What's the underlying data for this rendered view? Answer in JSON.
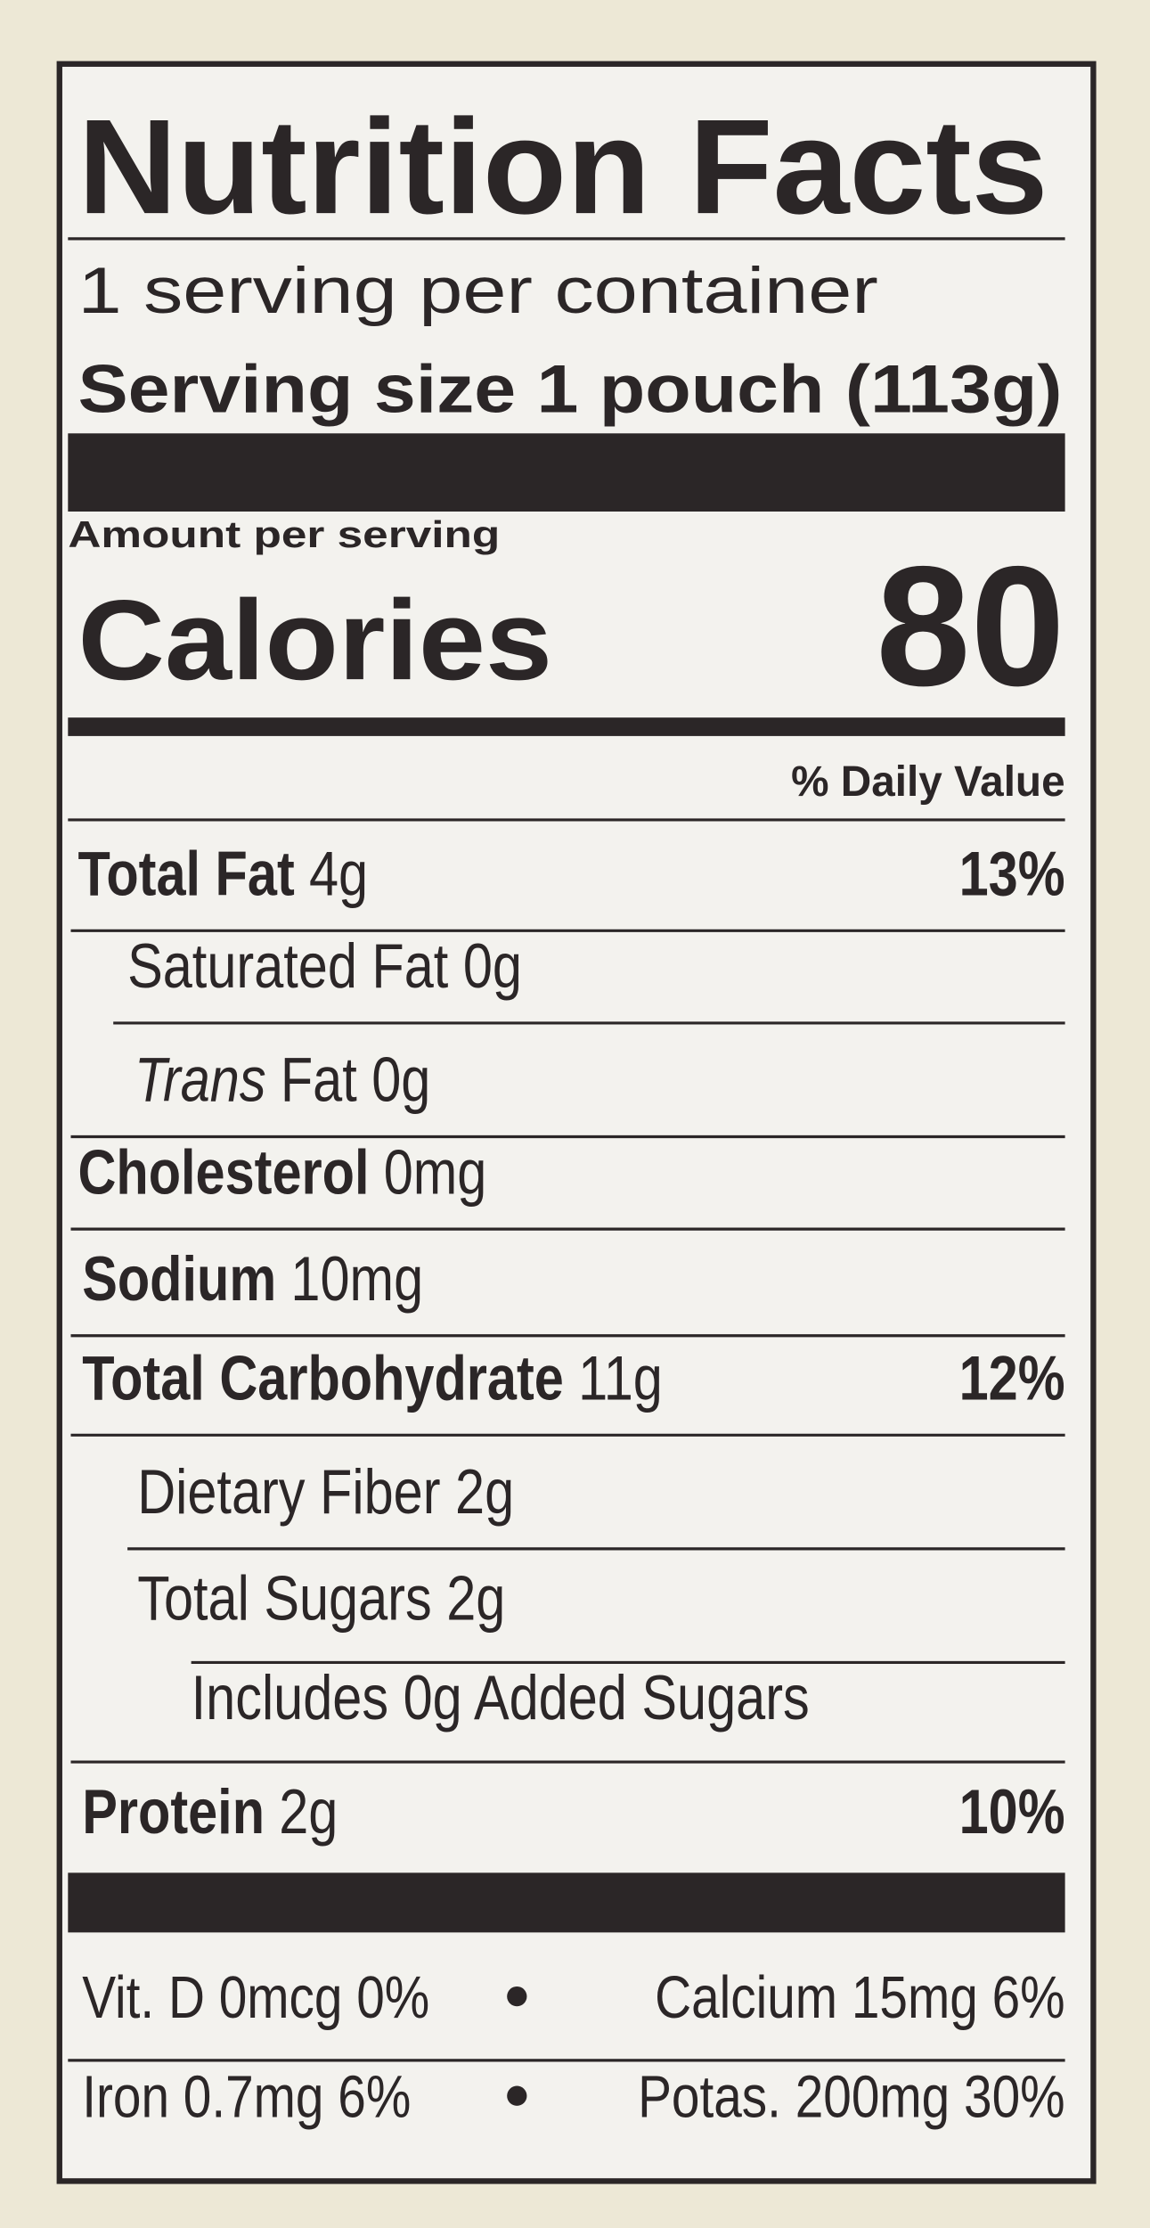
{
  "title": "Nutrition Facts",
  "servings": "1 serving per container",
  "serving_size": "Serving size 1 pouch (113g)",
  "amount_per_serving": "Amount per serving",
  "calories": {
    "label": "Calories",
    "value": "80"
  },
  "daily_value_header": "% Daily Value",
  "nutrients": [
    {
      "name": "Total Fat",
      "amount": "4g",
      "dv": "13%"
    },
    {
      "name": "Saturated Fat 0g"
    },
    {
      "name": "Trans",
      "amount": "Fat 0g"
    },
    {
      "name": "Cholesterol",
      "amount": "0mg"
    },
    {
      "name": "Sodium",
      "amount": "10mg"
    },
    {
      "name": "Total Carbohydrate",
      "amount": "11g",
      "dv": "12%"
    },
    {
      "name": "Dietary Fiber 2g"
    },
    {
      "name": "Total Sugars 2g"
    },
    {
      "name": "Includes 0g Added Sugars"
    },
    {
      "name": "Protein",
      "amount": "2g",
      "dv": "10%"
    }
  ],
  "vitamins": [
    [
      "Vit. D 0mcg 0%",
      "Calcium 15mg 6%"
    ],
    [
      "Iron 0.7mg 6%",
      "Potas. 200mg 30%"
    ]
  ]
}
